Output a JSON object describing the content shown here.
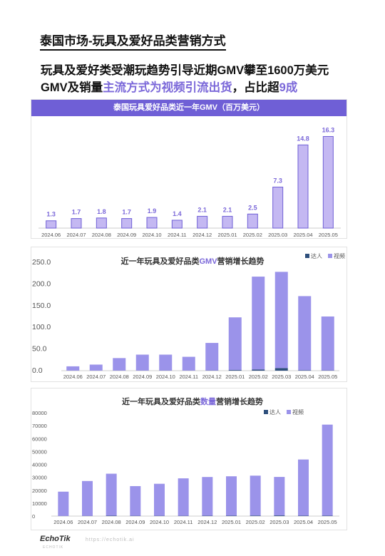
{
  "page": {
    "title": "泰国市场-玩具及爱好品类营销方式",
    "sub1": "玩具及爱好类受潮玩趋势引导近期GMV攀至1600万美元",
    "sub2_a": "GMV及销量",
    "sub2_b": "主流方式为视频引流出货",
    "sub2_c": "，占比超",
    "sub2_d": "9成",
    "footer_logo": "EchoTik",
    "footer_url": "https://echotik.ai",
    "footer_tag": "ECHOTIK"
  },
  "chart_data": [
    {
      "type": "bar",
      "title": "泰国玩具爱好品类近一年GMV（百万美元）",
      "categories": [
        "2024.06",
        "2024.07",
        "2024.08",
        "2024.09",
        "2024.10",
        "2024.11",
        "2024.12",
        "2025.01",
        "2025.02",
        "2025.03",
        "2025.04",
        "2025.05"
      ],
      "values": [
        1.3,
        1.7,
        1.8,
        1.7,
        1.9,
        1.4,
        2.1,
        2.1,
        2.5,
        7.3,
        14.8,
        16.3
      ],
      "value_labels": [
        "1.3",
        "1.7",
        "1.8",
        "1.7",
        "1.9",
        "1.4",
        "2.1",
        "2.1",
        "2.5",
        "7.3",
        "14.8",
        "16.3"
      ],
      "ylim": [
        0,
        17.5
      ],
      "bar_color": "#c4b8f2",
      "bar_border": "#6f5fd6",
      "label_color": "#7b68d9"
    },
    {
      "type": "bar",
      "title_a": "近一年玩具及爱好品类",
      "title_b": "GMV",
      "title_c": "营销增长趋势",
      "categories": [
        "2024.06",
        "2024.07",
        "2024.08",
        "2024.09",
        "2024.10",
        "2024.11",
        "2024.12",
        "2025.01",
        "2025.02",
        "2025.03",
        "2025.04",
        "2025.05"
      ],
      "series": [
        {
          "name": "达人",
          "color": "#2e4f7c",
          "values": [
            0.2,
            0.2,
            0.3,
            0.3,
            0.4,
            0.3,
            0.5,
            1.5,
            2.5,
            6.0,
            1.0,
            0.6
          ]
        },
        {
          "name": "视频",
          "color": "#9b93ea",
          "values": [
            9.8,
            13.8,
            28.7,
            36.7,
            36.6,
            31.7,
            63.5,
            121.5,
            214.5,
            222.0,
            171.0,
            124.4
          ]
        }
      ],
      "ylim": [
        0,
        250
      ],
      "yticks": [
        0,
        50,
        100,
        150,
        200,
        250
      ],
      "ytick_labels": [
        "0.0",
        "50.0",
        "100.0",
        "150.0",
        "200.0",
        "250.0"
      ],
      "legend": "top-right"
    },
    {
      "type": "bar",
      "title_a": "近一年玩具及爱好品类",
      "title_b": "数量",
      "title_c": "营销增长趋势",
      "categories": [
        "2024.06",
        "2024.07",
        "2024.08",
        "2024.09",
        "2024.10",
        "2024.11",
        "2024.12",
        "2025.01",
        "2025.02",
        "2025.03",
        "2025.04",
        "2025.05"
      ],
      "series": [
        {
          "name": "达人",
          "color": "#2e4f7c",
          "values": [
            100,
            150,
            300,
            200,
            200,
            200,
            250,
            300,
            400,
            500,
            300,
            300
          ]
        },
        {
          "name": "视频",
          "color": "#9b93ea",
          "values": [
            18800,
            27000,
            32500,
            23000,
            24800,
            29000,
            30000,
            30500,
            30900,
            29800,
            43500,
            70500
          ]
        }
      ],
      "ylim": [
        0,
        80000
      ],
      "yticks": [
        0,
        10000,
        20000,
        30000,
        40000,
        50000,
        60000,
        70000,
        80000
      ],
      "ytick_labels": [
        "0",
        "10000",
        "20000",
        "30000",
        "40000",
        "50000",
        "60000",
        "70000",
        "80000"
      ],
      "legend": "top-right"
    }
  ]
}
